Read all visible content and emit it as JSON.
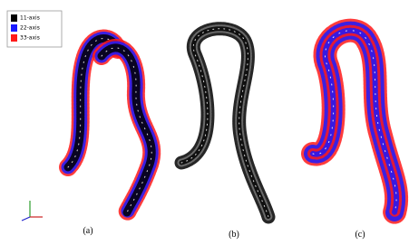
{
  "legend": {
    "entries": [
      {
        "label": "11-axis",
        "color": "#000000"
      },
      {
        "label": "22-axis",
        "color": "#1a1aff"
      },
      {
        "label": "33-axis",
        "color": "#ff1a1a"
      }
    ]
  },
  "panels": [
    {
      "label": "(a)"
    },
    {
      "label": "(b)"
    },
    {
      "label": "(c)"
    }
  ]
}
